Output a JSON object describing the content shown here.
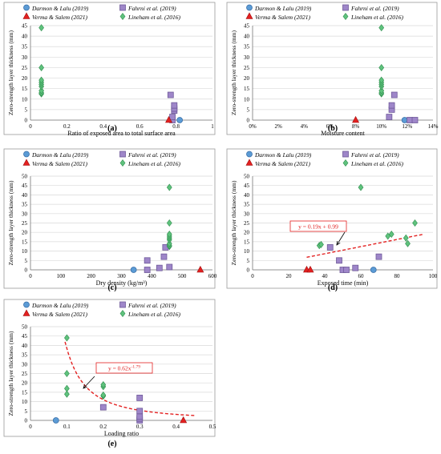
{
  "legend_labels": [
    "Darmon & Lalu (2019)",
    "Fahrni et al. (2019)",
    "Verma & Salem (2021)",
    "Lineham et al. (2016)"
  ],
  "colors": {
    "darmon": "#5b9bd5",
    "fahrni": "#9e86c9",
    "verma": "#e32020",
    "lineham": "#5fc27d",
    "trend": "#e32020",
    "grid": "#d9d9d9"
  },
  "marker_shapes": [
    "circle",
    "square",
    "triangle",
    "diamond"
  ],
  "chart_data": [
    {
      "panel": "(a)",
      "type": "scatter",
      "xlabel": "Ratio of exposed area to total surface area",
      "ylabel": "Zero-strength layer thickness (mm)",
      "xlim": [
        0,
        1
      ],
      "ylim": [
        0,
        45
      ],
      "xticks": [
        "0",
        "0.2",
        "0.4",
        "0.6",
        "0.8",
        "1"
      ],
      "xtick_values": [
        0,
        0.2,
        0.4,
        0.6,
        0.8,
        1
      ],
      "yticks": [
        0,
        5,
        10,
        15,
        20,
        25,
        30,
        35,
        40,
        45
      ],
      "grid": "horizontal",
      "series": [
        {
          "name": "Darmon & Lalu (2019)",
          "points": [
            [
              0.82,
              0
            ]
          ]
        },
        {
          "name": "Fahrni et al. (2019)",
          "points": [
            [
              0.78,
              0
            ],
            [
              0.78,
              1.5
            ],
            [
              0.79,
              4.5
            ],
            [
              0.79,
              5.5
            ],
            [
              0.79,
              7
            ],
            [
              0.77,
              12
            ]
          ]
        },
        {
          "name": "Verma & Salem (2021)",
          "points": [
            [
              0.76,
              0
            ]
          ]
        },
        {
          "name": "Lineham et al. (2016)",
          "points": [
            [
              0.06,
              12.5
            ],
            [
              0.06,
              13
            ],
            [
              0.06,
              14
            ],
            [
              0.06,
              16
            ],
            [
              0.06,
              17
            ],
            [
              0.06,
              18
            ],
            [
              0.06,
              19
            ],
            [
              0.06,
              25
            ],
            [
              0.06,
              44
            ]
          ]
        }
      ]
    },
    {
      "panel": "(b)",
      "type": "scatter",
      "xlabel": "Moisture content",
      "ylabel": "Zero-strength layer thickness (mm)",
      "xlim": [
        0,
        14
      ],
      "ylim": [
        0,
        45
      ],
      "xticks": [
        "0%",
        "2%",
        "4%",
        "6%",
        "8%",
        "10%",
        "12%",
        "14%"
      ],
      "xtick_values": [
        0,
        2,
        4,
        6,
        8,
        10,
        12,
        14
      ],
      "yticks": [
        0,
        5,
        10,
        15,
        20,
        25,
        30,
        35,
        40,
        45
      ],
      "grid": "horizontal",
      "series": [
        {
          "name": "Darmon & Lalu (2019)",
          "points": [
            [
              11.8,
              0
            ]
          ]
        },
        {
          "name": "Fahrni et al. (2019)",
          "points": [
            [
              10.6,
              1.5
            ],
            [
              10.8,
              5
            ],
            [
              10.8,
              7
            ],
            [
              11,
              12
            ],
            [
              12.2,
              0
            ],
            [
              12.6,
              0
            ]
          ]
        },
        {
          "name": "Verma & Salem (2021)",
          "points": [
            [
              8,
              0
            ]
          ]
        },
        {
          "name": "Lineham et al. (2016)",
          "points": [
            [
              10,
              12.5
            ],
            [
              10,
              13
            ],
            [
              10,
              14
            ],
            [
              10,
              16
            ],
            [
              10,
              17
            ],
            [
              10,
              18
            ],
            [
              10,
              19
            ],
            [
              10,
              25
            ],
            [
              10,
              44
            ]
          ]
        }
      ]
    },
    {
      "panel": "(c)",
      "type": "scatter",
      "xlabel": "Dry density (kg/m³)",
      "ylabel": "Zero-strength layer thickness (mm)",
      "xlim": [
        0,
        600
      ],
      "ylim": [
        0,
        50
      ],
      "xticks": [
        "0",
        "100",
        "200",
        "300",
        "400",
        "500",
        "600"
      ],
      "xtick_values": [
        0,
        100,
        200,
        300,
        400,
        500,
        600
      ],
      "yticks": [
        0,
        5,
        10,
        15,
        20,
        25,
        30,
        35,
        40,
        45,
        50
      ],
      "grid": "horizontal",
      "series": [
        {
          "name": "Darmon & Lalu (2019)",
          "points": [
            [
              340,
              0
            ]
          ]
        },
        {
          "name": "Fahrni et al. (2019)",
          "points": [
            [
              385,
              0
            ],
            [
              385,
              5
            ],
            [
              425,
              1
            ],
            [
              440,
              7
            ],
            [
              445,
              12
            ],
            [
              458,
              1.5
            ]
          ]
        },
        {
          "name": "Verma & Salem (2021)",
          "points": [
            [
              560,
              0
            ]
          ]
        },
        {
          "name": "Lineham et al. (2016)",
          "points": [
            [
              458,
              12.5
            ],
            [
              458,
              13
            ],
            [
              458,
              14
            ],
            [
              458,
              16
            ],
            [
              458,
              17
            ],
            [
              458,
              18
            ],
            [
              458,
              19
            ],
            [
              458,
              25
            ],
            [
              458,
              44
            ]
          ]
        }
      ]
    },
    {
      "panel": "(d)",
      "type": "scatter",
      "xlabel": "Exposed time (min)",
      "ylabel": "Zero-strength layer thickness (mm)",
      "xlim": [
        0,
        100
      ],
      "ylim": [
        0,
        50
      ],
      "xticks": [
        "0",
        "20",
        "40",
        "60",
        "80",
        "100"
      ],
      "xtick_values": [
        0,
        20,
        40,
        60,
        80,
        100
      ],
      "yticks": [
        0,
        5,
        10,
        15,
        20,
        25,
        30,
        35,
        40,
        45,
        50
      ],
      "grid": "horizontal",
      "trendline": {
        "label": "y = 0.19x + 0.99",
        "slope": 0.19,
        "intercept": 0.99,
        "x_range": [
          30,
          95
        ]
      },
      "series": [
        {
          "name": "Darmon & Lalu (2019)",
          "points": [
            [
              67,
              0
            ]
          ]
        },
        {
          "name": "Fahrni et al. (2019)",
          "points": [
            [
              43,
              12
            ],
            [
              48,
              5
            ],
            [
              50,
              0
            ],
            [
              52,
              0
            ],
            [
              57,
              1
            ],
            [
              70,
              7
            ]
          ]
        },
        {
          "name": "Verma & Salem (2021)",
          "points": [
            [
              30,
              0
            ],
            [
              32,
              0
            ]
          ]
        },
        {
          "name": "Lineham et al. (2016)",
          "points": [
            [
              37,
              13
            ],
            [
              38,
              13.5
            ],
            [
              60,
              44
            ],
            [
              75,
              18
            ],
            [
              77,
              19
            ],
            [
              85,
              17
            ],
            [
              86,
              14
            ],
            [
              90,
              25
            ]
          ]
        }
      ]
    },
    {
      "panel": "(e)",
      "type": "scatter",
      "xlabel": "Loading ratio",
      "ylabel": "Zero-strength layer thickness (mm)",
      "xlim": [
        0,
        0.5
      ],
      "ylim": [
        0,
        50
      ],
      "xticks": [
        "0",
        "0.1",
        "0.2",
        "0.3",
        "0.4",
        "0.5"
      ],
      "xtick_values": [
        0,
        0.1,
        0.2,
        0.3,
        0.4,
        0.5
      ],
      "yticks": [
        0,
        5,
        10,
        15,
        20,
        25,
        30,
        35,
        40,
        45,
        50
      ],
      "grid": "horizontal",
      "trendline": {
        "label": "y = 0.62x",
        "label_exponent": "-1.79",
        "coef": 0.62,
        "exponent": -1.79,
        "x_range": [
          0.095,
          0.45
        ]
      },
      "series": [
        {
          "name": "Darmon & Lalu (2019)",
          "points": [
            [
              0.07,
              0
            ]
          ]
        },
        {
          "name": "Fahrni et al. (2019)",
          "points": [
            [
              0.2,
              7
            ],
            [
              0.3,
              0
            ],
            [
              0.3,
              1
            ],
            [
              0.3,
              2
            ],
            [
              0.3,
              5
            ],
            [
              0.3,
              12
            ]
          ]
        },
        {
          "name": "Verma & Salem (2021)",
          "points": [
            [
              0.42,
              0
            ]
          ]
        },
        {
          "name": "Lineham et al. (2016)",
          "points": [
            [
              0.1,
              14
            ],
            [
              0.1,
              17
            ],
            [
              0.1,
              25
            ],
            [
              0.1,
              44
            ],
            [
              0.2,
              13
            ],
            [
              0.2,
              13.5
            ],
            [
              0.2,
              18
            ],
            [
              0.2,
              19
            ]
          ]
        }
      ]
    }
  ]
}
